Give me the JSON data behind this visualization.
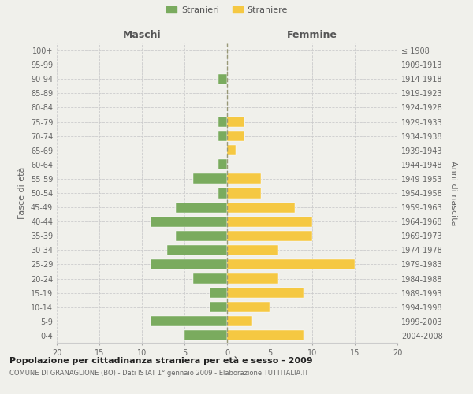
{
  "age_groups": [
    "100+",
    "95-99",
    "90-94",
    "85-89",
    "80-84",
    "75-79",
    "70-74",
    "65-69",
    "60-64",
    "55-59",
    "50-54",
    "45-49",
    "40-44",
    "35-39",
    "30-34",
    "25-29",
    "20-24",
    "15-19",
    "10-14",
    "5-9",
    "0-4"
  ],
  "birth_years": [
    "≤ 1908",
    "1909-1913",
    "1914-1918",
    "1919-1923",
    "1924-1928",
    "1929-1933",
    "1934-1938",
    "1939-1943",
    "1944-1948",
    "1949-1953",
    "1954-1958",
    "1959-1963",
    "1964-1968",
    "1969-1973",
    "1974-1978",
    "1979-1983",
    "1984-1988",
    "1989-1993",
    "1994-1998",
    "1999-2003",
    "2004-2008"
  ],
  "males": [
    0,
    0,
    1,
    0,
    0,
    1,
    1,
    0,
    1,
    4,
    1,
    6,
    9,
    6,
    7,
    9,
    4,
    2,
    2,
    9,
    5
  ],
  "females": [
    0,
    0,
    0,
    0,
    0,
    2,
    2,
    1,
    0,
    4,
    4,
    8,
    10,
    10,
    6,
    15,
    6,
    9,
    5,
    3,
    9
  ],
  "male_color": "#7aab5e",
  "female_color": "#f5c842",
  "background_color": "#f0f0eb",
  "grid_color": "#cccccc",
  "bar_edge_color": "#ffffff",
  "title": "Popolazione per cittadinanza straniera per età e sesso - 2009",
  "subtitle": "COMUNE DI GRANAGLIONE (BO) - Dati ISTAT 1° gennaio 2009 - Elaborazione TUTTITALIA.IT",
  "xlabel_left": "Maschi",
  "xlabel_right": "Femmine",
  "ylabel_left": "Fasce di età",
  "ylabel_right": "Anni di nascita",
  "xlim": 20,
  "legend_male": "Stranieri",
  "legend_female": "Straniere"
}
